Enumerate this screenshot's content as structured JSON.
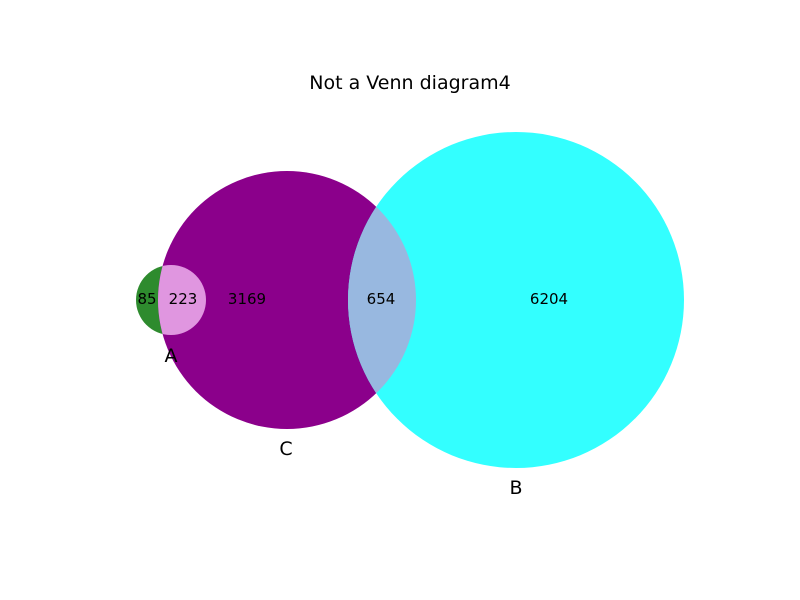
{
  "title": "Not a Venn diagram4",
  "sets": [
    {
      "key": "A",
      "label": "A",
      "color": "#2e8b2e"
    },
    {
      "key": "B",
      "label": "B",
      "color": "#33ffff"
    },
    {
      "key": "C",
      "label": "C",
      "color": "#8b008b"
    }
  ],
  "regions": {
    "A_only": "85",
    "A_and_C": "223",
    "C_only": "3169",
    "B_and_C": "654",
    "B_only": "6204"
  },
  "region_colors": {
    "A_and_C": "#e096e0",
    "B_and_C": "#98b8e0"
  }
}
